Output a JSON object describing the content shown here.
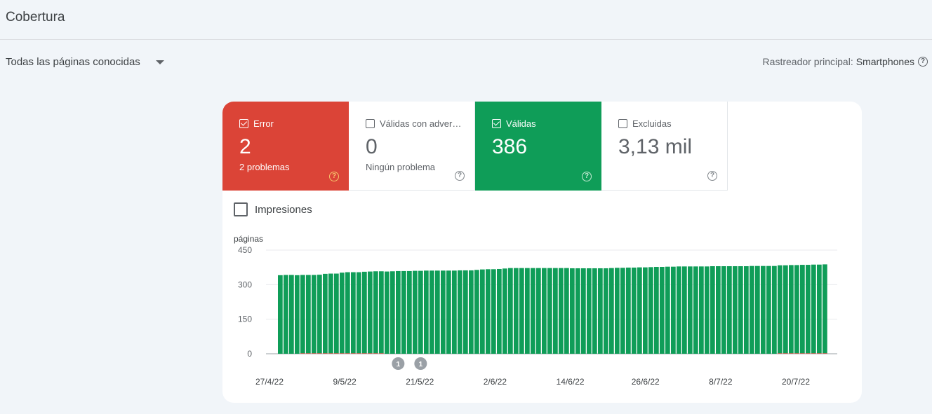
{
  "page": {
    "title": "Cobertura"
  },
  "filter": {
    "label": "Todas las páginas conocidas"
  },
  "crawler": {
    "label": "Rastreador principal:",
    "value": "Smartphones"
  },
  "tiles": {
    "error": {
      "label": "Error",
      "value": "2",
      "sub": "2 problemas",
      "checked": true,
      "color": "#db4437"
    },
    "warnings": {
      "label": "Válidas con adver…",
      "value": "0",
      "sub": "Ningún problema",
      "checked": false
    },
    "valid": {
      "label": "Válidas",
      "value": "386",
      "sub": "",
      "checked": true,
      "color": "#0f9d58"
    },
    "excluded": {
      "label": "Excluidas",
      "value": "3,13 mil",
      "sub": "",
      "checked": false
    }
  },
  "impressions": {
    "label": "Impresiones",
    "checked": false
  },
  "chart_data": {
    "type": "bar",
    "ylabel": "páginas",
    "ylim": [
      0,
      450
    ],
    "yticks": [
      "450",
      "300",
      "150",
      "0"
    ],
    "xtick_labels": [
      "27/4/22",
      "9/5/22",
      "21/5/22",
      "2/6/22",
      "14/6/22",
      "26/6/22",
      "8/7/22",
      "20/7/22"
    ],
    "annotations": [
      {
        "label": "1",
        "day_index": 21
      },
      {
        "label": "1",
        "day_index": 25
      }
    ],
    "series": [
      {
        "name": "Válidas",
        "color": "#0f9d58",
        "values": [
          341,
          342,
          342,
          341,
          340,
          340,
          340,
          341,
          345,
          346,
          346,
          350,
          352,
          352,
          352,
          354,
          355,
          356,
          356,
          357,
          358,
          359,
          359,
          359,
          360,
          360,
          361,
          361,
          361,
          361,
          361,
          361,
          362,
          362,
          362,
          364,
          366,
          367,
          367,
          368,
          370,
          372,
          372,
          372,
          372,
          372,
          372,
          372,
          372,
          372,
          372,
          372,
          371,
          371,
          371,
          371,
          371,
          371,
          371,
          372,
          373,
          373,
          374,
          374,
          375,
          375,
          376,
          377,
          377,
          378,
          378,
          379,
          379,
          379,
          379,
          379,
          379,
          380,
          380,
          380,
          380,
          380,
          380,
          380,
          381,
          381,
          381,
          381,
          381,
          382,
          382,
          383,
          383,
          384,
          384,
          385,
          385,
          386
        ]
      },
      {
        "name": "Error",
        "color": "#db4437",
        "values": [
          0,
          0,
          0,
          0,
          2,
          2,
          2,
          2,
          2,
          2,
          2,
          2,
          2,
          2,
          2,
          2,
          2,
          2,
          2,
          0,
          0,
          0,
          0,
          0,
          0,
          0,
          0,
          0,
          0,
          0,
          0,
          0,
          0,
          0,
          0,
          0,
          0,
          0,
          0,
          0,
          0,
          0,
          0,
          0,
          0,
          0,
          0,
          0,
          0,
          0,
          0,
          0,
          0,
          0,
          0,
          0,
          0,
          0,
          0,
          0,
          0,
          0,
          0,
          0,
          0,
          0,
          0,
          0,
          0,
          0,
          0,
          0,
          0,
          0,
          0,
          0,
          0,
          0,
          0,
          0,
          0,
          0,
          0,
          0,
          0,
          0,
          0,
          0,
          0,
          2,
          2,
          2,
          2,
          2,
          2,
          2,
          2,
          2
        ]
      }
    ]
  }
}
